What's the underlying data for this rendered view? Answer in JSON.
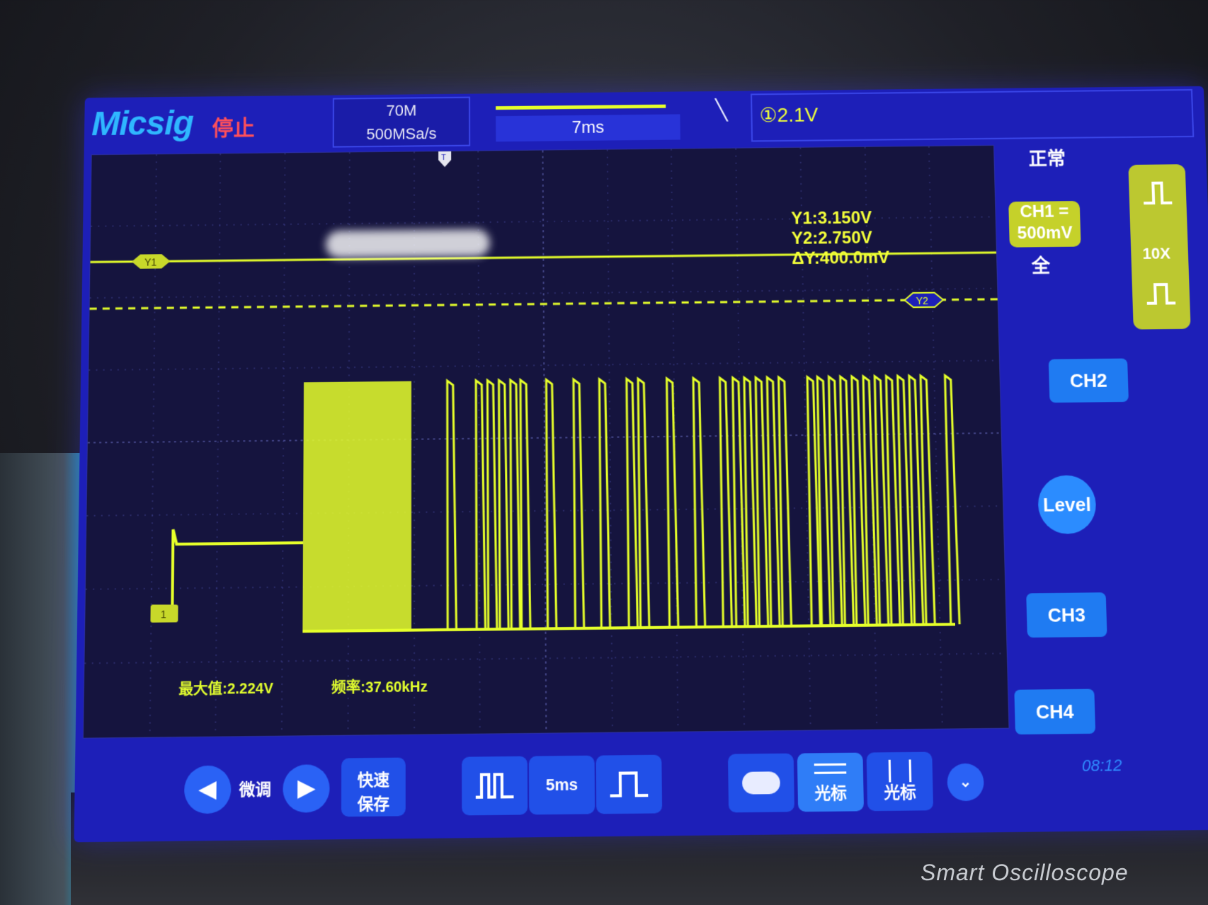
{
  "header": {
    "logo": "Micsig",
    "run_state": "停止",
    "bandwidth": "70M",
    "sample_rate": "500MSa/s",
    "timebase": "7ms",
    "trigger_level": "①2.1V",
    "trigger_marker": "T"
  },
  "cursor": {
    "y1_tag": "Y1",
    "y2_tag": "Y2",
    "y1_readout": "Y1:3.150V",
    "y2_readout": "Y2:2.750V",
    "dy_readout": "ΔY:400.0mV"
  },
  "measurements": {
    "max": "最大值:2.224V",
    "freq": "频率:37.60kHz"
  },
  "channel_marker": "1",
  "right_panel": {
    "mode": "正常",
    "ch1_name": "CH1",
    "ch1_coupling": "=",
    "ch1_scale": "500mV",
    "bandwidth_limit": "全",
    "probe": "10X",
    "ch2": "CH2",
    "ch3": "CH3",
    "ch4": "CH4",
    "level": "Level"
  },
  "toolbar": {
    "fine_label": "微调",
    "quick_save_line1": "快速",
    "quick_save_line2": "保存",
    "time_scale": "5ms",
    "cursor_h": "光标",
    "cursor_v": "光标",
    "clock": "08:12"
  },
  "bezel_brand": "Smart Oscilloscope",
  "colors": {
    "screen_bg": "#1d1fb8",
    "trace": "#e6ff2a",
    "accent": "#2fb7ff",
    "stopped": "#ff4f5a"
  }
}
